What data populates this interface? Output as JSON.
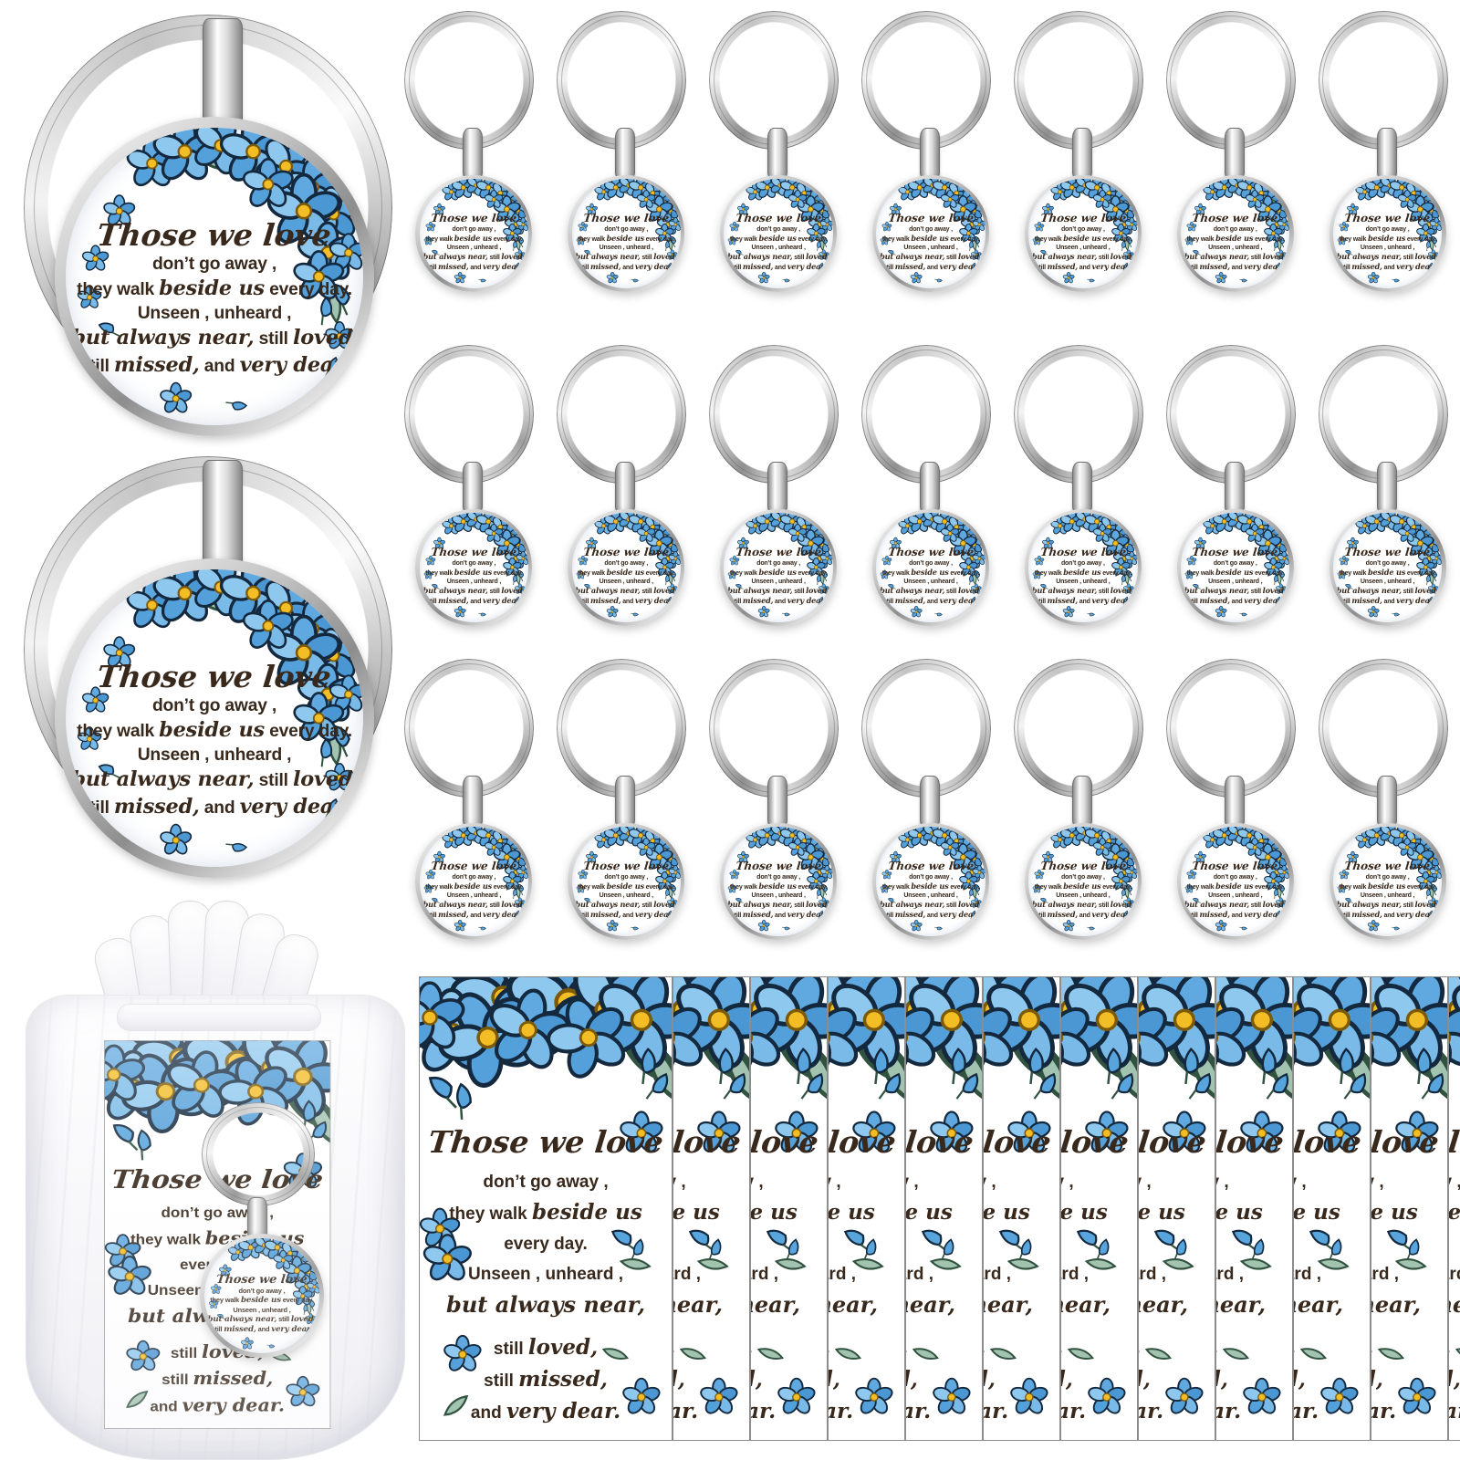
{
  "quote": {
    "those_we_love": "Those we love",
    "dont_go_away": "don’t go away ,",
    "they_walk": "they walk",
    "beside_us": "beside us",
    "every_day": "every day.",
    "unseen_unheard": "Unseen ,  unheard ,",
    "but_always_near": "but always near,",
    "still": "still",
    "loved": "loved,",
    "missed": "missed,",
    "and": "and",
    "very_dear": "very dear."
  },
  "layout": {
    "grid_rows": 3,
    "grid_columns": 7,
    "small_keychain_count": 21,
    "large_keychain_count": 2,
    "bag_count": 1,
    "card_count": 12,
    "card_sliver_count": 11
  },
  "colors": {
    "flower_blue": "#5fa8e0",
    "flower_blue_dark": "#4b97d3",
    "flower_blue_light": "#8ec8ef",
    "flower_outline": "#14293e",
    "flower_center_yellow": "#f3bd26",
    "leaf_green": "#a3c3b1",
    "leaf_outline": "#31523f",
    "text_brown": "#38291c",
    "metal_silver": "#c6c6c6",
    "background": "#ffffff"
  }
}
